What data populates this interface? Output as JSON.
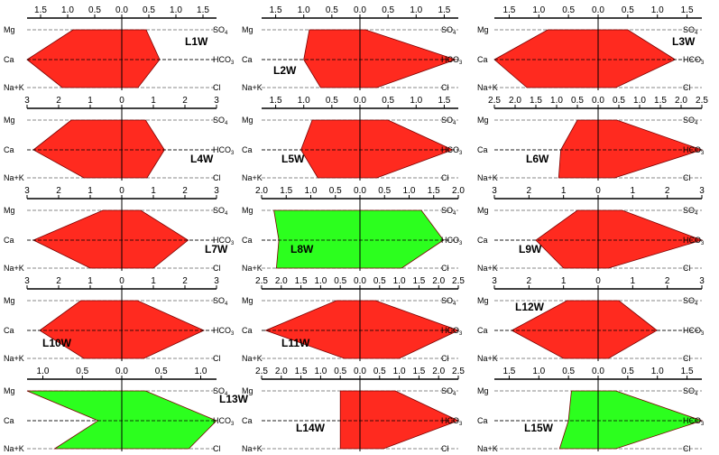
{
  "chart_data": {
    "type": "stiff_diagram",
    "ion_labels": {
      "left": [
        "Mg",
        "Ca",
        "Na+K"
      ],
      "right": [
        "SO4",
        "HCO3",
        "Cl"
      ]
    },
    "colors": {
      "fill_default": "#ff2a1f",
      "fill_alt": "#2cff1e"
    },
    "panels": [
      {
        "name": "L1W",
        "fill": "red",
        "ticks": [
          "1.5",
          "1.0",
          "0.5",
          "0.0",
          "0.5",
          "1.0",
          "1.5"
        ],
        "ticks_numeric": [
          -1.5,
          -1.0,
          -0.5,
          0,
          0.5,
          1.0,
          1.5
        ],
        "xlim": [
          -1.75,
          1.75
        ],
        "left": {
          "Mg": 0.9,
          "Ca": 1.75,
          "Na+K": 1.1
        },
        "right": {
          "SO4": 0.45,
          "HCO3": 0.7,
          "Cl": 0.3
        }
      },
      {
        "name": "L2W",
        "fill": "red",
        "ticks": [
          "1.5",
          "1.0",
          "0.5",
          "0.0",
          "0.5",
          "1.0",
          "1.5"
        ],
        "ticks_numeric": [
          -1.5,
          -1.0,
          -0.5,
          0,
          0.5,
          1.0,
          1.5
        ],
        "xlim": [
          -1.75,
          1.75
        ],
        "left": {
          "Mg": 0.9,
          "Ca": 1.0,
          "Na+K": 0.7
        },
        "right": {
          "SO4": 0.1,
          "HCO3": 1.7,
          "Cl": 0.3
        }
      },
      {
        "name": "L3W",
        "fill": "red",
        "ticks": [
          "1.5",
          "1.0",
          "0.5",
          "0.0",
          "0.5",
          "1.0",
          "1.5"
        ],
        "ticks_numeric": [
          -1.5,
          -1.0,
          -0.5,
          0,
          0.5,
          1.0,
          1.5
        ],
        "xlim": [
          -1.75,
          1.75
        ],
        "left": {
          "Mg": 0.85,
          "Ca": 1.75,
          "Na+K": 1.2
        },
        "right": {
          "SO4": 0.5,
          "HCO3": 1.3,
          "Cl": 0.3
        }
      },
      {
        "name": "L4W",
        "fill": "red",
        "ticks": [
          "3",
          "2",
          "1",
          "0",
          "1",
          "2",
          "3"
        ],
        "ticks_numeric": [
          -3,
          -2,
          -1,
          0,
          1,
          2,
          3
        ],
        "xlim": [
          -3,
          3
        ],
        "left": {
          "Mg": 1.6,
          "Ca": 2.8,
          "Na+K": 1.2
        },
        "right": {
          "SO4": 0.75,
          "HCO3": 1.35,
          "Cl": 0.8
        }
      },
      {
        "name": "L5W",
        "fill": "red",
        "ticks": [
          "1.5",
          "1.0",
          "0.5",
          "0.0",
          "0.5",
          "1.0",
          "1.5"
        ],
        "ticks_numeric": [
          -1.5,
          -1.0,
          -0.5,
          0,
          0.5,
          1.0,
          1.5
        ],
        "xlim": [
          -1.75,
          1.75
        ],
        "left": {
          "Mg": 0.85,
          "Ca": 1.05,
          "Na+K": 0.75
        },
        "right": {
          "SO4": 0.5,
          "HCO3": 1.65,
          "Cl": 0.3
        }
      },
      {
        "name": "L6W",
        "fill": "red",
        "ticks": [
          "2.5",
          "2.0",
          "1.5",
          "1.0",
          "0.5",
          "0.0",
          "0.5",
          "1.0",
          "1.5",
          "2.0",
          "2.5"
        ],
        "ticks_numeric": [
          -2.5,
          -2.0,
          -1.5,
          -1.0,
          -0.5,
          0,
          0.5,
          1.0,
          1.5,
          2.0,
          2.5
        ],
        "xlim": [
          -2.5,
          2.5
        ],
        "left": {
          "Mg": 0.5,
          "Ca": 0.9,
          "Na+K": 0.95
        },
        "right": {
          "SO4": 0.45,
          "HCO3": 2.5,
          "Cl": 0.4
        }
      },
      {
        "name": "L7W",
        "fill": "red",
        "ticks": [
          "3",
          "2",
          "1",
          "0",
          "1",
          "2",
          "3"
        ],
        "ticks_numeric": [
          -3,
          -2,
          -1,
          0,
          1,
          2,
          3
        ],
        "xlim": [
          -3,
          3
        ],
        "left": {
          "Mg": 0.6,
          "Ca": 2.8,
          "Na+K": 1.0
        },
        "right": {
          "SO4": 0.6,
          "HCO3": 2.1,
          "Cl": 1.0
        }
      },
      {
        "name": "L8W",
        "fill": "green",
        "ticks": [
          "2.0",
          "1.5",
          "1.0",
          "0.5",
          "0.0",
          "0.5",
          "1.0",
          "1.5",
          "2.0"
        ],
        "ticks_numeric": [
          -2.0,
          -1.5,
          -1.0,
          -0.5,
          0,
          0.5,
          1.0,
          1.5,
          2.0
        ],
        "xlim": [
          -2.0,
          2.0
        ],
        "left": {
          "Mg": 1.75,
          "Ca": 1.65,
          "Na+K": 1.7
        },
        "right": {
          "SO4": 1.25,
          "HCO3": 1.7,
          "Cl": 0.85
        }
      },
      {
        "name": "L9W",
        "fill": "red",
        "ticks": [
          "3",
          "2",
          "1",
          "0",
          "1",
          "2",
          "3"
        ],
        "ticks_numeric": [
          -3,
          -2,
          -1,
          0,
          1,
          2,
          3
        ],
        "xlim": [
          -3,
          3
        ],
        "left": {
          "Mg": 0.6,
          "Ca": 1.8,
          "Na+K": 1.0
        },
        "right": {
          "SO4": 0.7,
          "HCO3": 3.0,
          "Cl": 0.3
        }
      },
      {
        "name": "L10W",
        "fill": "red",
        "ticks": [
          "3",
          "2",
          "1",
          "0",
          "1",
          "2",
          "3"
        ],
        "ticks_numeric": [
          -3,
          -2,
          -1,
          0,
          1,
          2,
          3
        ],
        "xlim": [
          -3,
          3
        ],
        "left": {
          "Mg": 1.3,
          "Ca": 2.6,
          "Na+K": 1.2
        },
        "right": {
          "SO4": 0.5,
          "HCO3": 2.6,
          "Cl": 0.7
        }
      },
      {
        "name": "L11W",
        "fill": "red",
        "ticks": [
          "2.5",
          "2.0",
          "1.5",
          "1.0",
          "0.5",
          "0.0",
          "0.5",
          "1.0",
          "1.5",
          "2.0",
          "2.5"
        ],
        "ticks_numeric": [
          -2.5,
          -2.0,
          -1.5,
          -1.0,
          -0.5,
          0,
          0.5,
          1.0,
          1.5,
          2.0,
          2.5
        ],
        "xlim": [
          -2.5,
          2.5
        ],
        "left": {
          "Mg": 0.6,
          "Ca": 2.4,
          "Na+K": 0.4
        },
        "right": {
          "SO4": 0.4,
          "HCO3": 2.5,
          "Cl": 1.0
        }
      },
      {
        "name": "L12W",
        "fill": "red",
        "ticks": [
          "3",
          "2",
          "1",
          "0",
          "1",
          "2",
          "3"
        ],
        "ticks_numeric": [
          -3,
          -2,
          -1,
          0,
          1,
          2,
          3
        ],
        "xlim": [
          -3,
          3
        ],
        "left": {
          "Mg": 0.9,
          "Ca": 2.5,
          "Na+K": 1.0
        },
        "right": {
          "SO4": 0.6,
          "HCO3": 1.7,
          "Cl": 0.3
        }
      },
      {
        "name": "L13W",
        "fill": "green",
        "ticks": [
          "1.0",
          "0.5",
          "0.0",
          "0.5",
          "1.0"
        ],
        "ticks_numeric": [
          -1.0,
          -0.5,
          0,
          0.5,
          1.0
        ],
        "xlim": [
          -1.2,
          1.2
        ],
        "left": {
          "Mg": 1.2,
          "Ca": 0.3,
          "Na+K": 0.85
        },
        "right": {
          "SO4": 0.3,
          "HCO3": 1.2,
          "Cl": 0.85
        }
      },
      {
        "name": "L14W",
        "fill": "red",
        "ticks": [
          "2.5",
          "2.0",
          "1.5",
          "1.0",
          "0.5",
          "0.0",
          "0.5",
          "1.0",
          "1.5",
          "2.0",
          "2.5"
        ],
        "ticks_numeric": [
          -2.5,
          -2.0,
          -1.5,
          -1.0,
          -0.5,
          0,
          0.5,
          1.0,
          1.5,
          2.0,
          2.5
        ],
        "xlim": [
          -2.5,
          2.5
        ],
        "left": {
          "Mg": 0.5,
          "Ca": 0.5,
          "Na+K": 0.5
        },
        "right": {
          "SO4": 0.9,
          "HCO3": 2.5,
          "Cl": 0.6
        }
      },
      {
        "name": "L15W",
        "fill": "green",
        "ticks": [
          "1.5",
          "1.0",
          "0.5",
          "0.0",
          "0.5",
          "1.0",
          "1.5"
        ],
        "ticks_numeric": [
          -1.5,
          -1.0,
          -0.5,
          0,
          0.5,
          1.0,
          1.5
        ],
        "xlim": [
          -1.75,
          1.75
        ],
        "left": {
          "Mg": 0.45,
          "Ca": 0.5,
          "Na+K": 0.65
        },
        "right": {
          "SO4": 0.3,
          "HCO3": 1.75,
          "Cl": 0.3
        }
      }
    ]
  }
}
